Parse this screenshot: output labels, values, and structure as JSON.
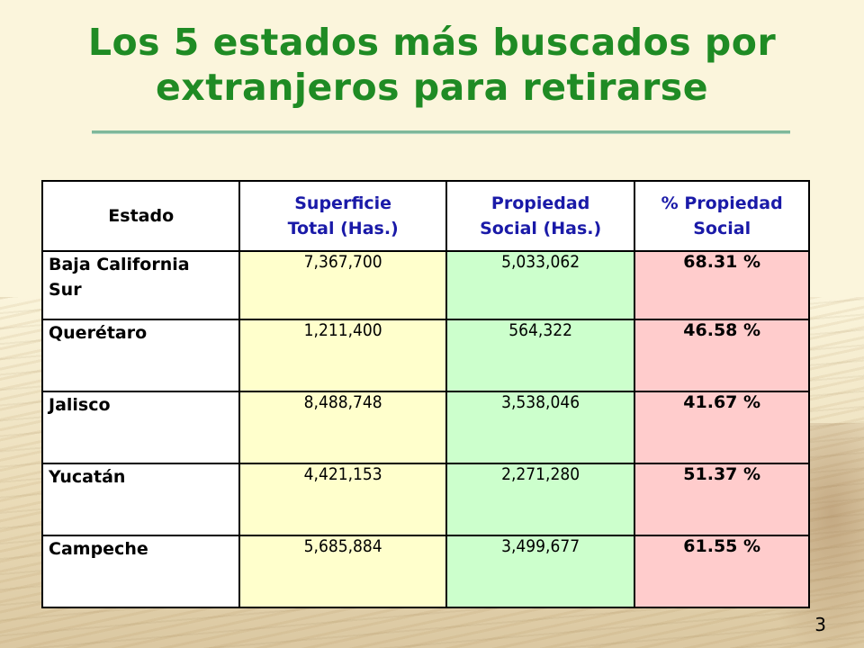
{
  "slide": {
    "title_line1": "Los 5 estados más buscados por",
    "title_line2": "extranjeros para retirarse",
    "page_number": "3"
  },
  "table": {
    "headers": {
      "estado": "Estado",
      "superficie_line1": "Superficie",
      "superficie_line2": "Total (Has.)",
      "propiedad_line1": "Propiedad",
      "propiedad_line2": "Social (Has.)",
      "porcentaje_line1": "% Propiedad",
      "porcentaje_line2": "Social"
    },
    "rows": [
      {
        "estado_line1": "Baja California",
        "estado_line2": "Sur",
        "superficie": "7,367,700",
        "propiedad": "5,033,062",
        "porcentaje": "68.31 %"
      },
      {
        "estado_line1": "Querétaro",
        "estado_line2": "",
        "superficie": "1,211,400",
        "propiedad": "564,322",
        "porcentaje": "46.58 %"
      },
      {
        "estado_line1": "Jalisco",
        "estado_line2": "",
        "superficie": "8,488,748",
        "propiedad": "3,538,046",
        "porcentaje": "41.67 %"
      },
      {
        "estado_line1": "Yucatán",
        "estado_line2": "",
        "superficie": "4,421,153",
        "propiedad": "2,271,280",
        "porcentaje": "51.37 %"
      },
      {
        "estado_line1": "Campeche",
        "estado_line2": "",
        "superficie": "5,685,884",
        "propiedad": "3,499,677",
        "porcentaje": "61.55 %"
      }
    ]
  },
  "colors": {
    "title": "#1f8b24",
    "header_text_blue": "#1a1aa8",
    "superficie_fill": "#ffffcc",
    "propiedad_fill": "#ccffcc",
    "porcentaje_fill": "#ffcccc"
  }
}
